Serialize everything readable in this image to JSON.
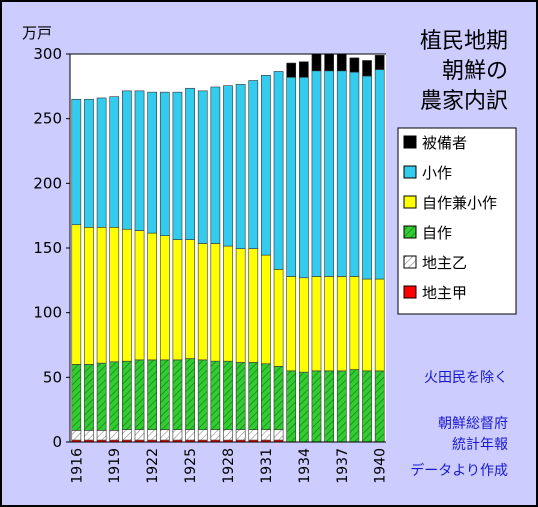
{
  "chart_data": {
    "type": "bar",
    "stacked": true,
    "title": [
      "植民地期",
      "朝鮮の",
      "農家内訳"
    ],
    "ylabel": "万戸",
    "ylim": [
      0,
      300
    ],
    "yticks": [
      0,
      50,
      100,
      150,
      200,
      250,
      300
    ],
    "x": [
      1916,
      1917,
      1918,
      1919,
      1920,
      1921,
      1922,
      1923,
      1924,
      1925,
      1926,
      1927,
      1928,
      1929,
      1930,
      1931,
      1932,
      1933,
      1934,
      1935,
      1936,
      1937,
      1938,
      1939,
      1940
    ],
    "xtick_labels": [
      "1916",
      "1919",
      "1922",
      "1925",
      "1928",
      "1931",
      "1934",
      "1937",
      "1940"
    ],
    "series": [
      {
        "name": "地主甲",
        "color": "#ff0000",
        "values": [
          1.5,
          1.5,
          1.5,
          1.5,
          1.5,
          1.5,
          1.5,
          1.5,
          1.5,
          1.5,
          1.5,
          1.5,
          1.5,
          1.5,
          1.5,
          1.5,
          1.5,
          0,
          0,
          0,
          0,
          0,
          0,
          0,
          0
        ]
      },
      {
        "name": "地主乙",
        "color": "#ffffff",
        "values": [
          7.5,
          7.5,
          7.5,
          7.5,
          8.0,
          8.0,
          8.0,
          8.0,
          8.0,
          8.0,
          8.0,
          8.0,
          8.0,
          8.0,
          8.0,
          8.0,
          8.0,
          0,
          0,
          0,
          0,
          0,
          0,
          0,
          0
        ]
      },
      {
        "name": "自作",
        "color": "#33cc33",
        "values": [
          51,
          51,
          52,
          53,
          53,
          54,
          54,
          54,
          54,
          55,
          54,
          53,
          53,
          52,
          52,
          51,
          49,
          55,
          54,
          55,
          55,
          55,
          56,
          55,
          55
        ]
      },
      {
        "name": "自作兼小作",
        "color": "#ffff00",
        "values": [
          108,
          106,
          105,
          104,
          102,
          100,
          98,
          96,
          93,
          92,
          90,
          91,
          89,
          88,
          88,
          84,
          75,
          73,
          73,
          73,
          73,
          73,
          72,
          71,
          71
        ]
      },
      {
        "name": "小作",
        "color": "#33ccee",
        "values": [
          97,
          99,
          100,
          101,
          107,
          108,
          109,
          111,
          114,
          117,
          118,
          121,
          124,
          127,
          130,
          139,
          153,
          154,
          155,
          159,
          159,
          159,
          158,
          157,
          162
        ]
      },
      {
        "name": "被備者",
        "color": "#000000",
        "values": [
          0,
          0,
          0,
          0,
          0,
          0,
          0,
          0,
          0,
          0,
          0,
          0,
          0,
          0,
          0,
          0,
          0,
          11,
          12,
          13,
          13,
          13,
          11,
          12,
          11
        ]
      }
    ],
    "legend": {
      "position": "right",
      "order": [
        "被備者",
        "小作",
        "自作兼小作",
        "自作",
        "地主乙",
        "地主甲"
      ]
    },
    "grid": false
  },
  "notes": [
    "火田民を除く",
    "朝鮮総督府",
    "統計年報",
    "データより作成"
  ]
}
